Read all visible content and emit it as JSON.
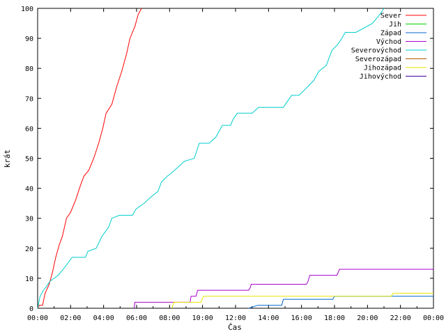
{
  "chart_data": {
    "type": "line",
    "title": "",
    "xlabel": "Čas",
    "ylabel": "krát",
    "xlim": [
      0,
      24
    ],
    "ylim": [
      0,
      100
    ],
    "x_ticks": [
      "00:00",
      "02:00",
      "04:00",
      "06:00",
      "08:00",
      "10:00",
      "12:00",
      "14:00",
      "16:00",
      "18:00",
      "20:00",
      "22:00",
      "00:00"
    ],
    "y_ticks": [
      0,
      10,
      20,
      30,
      40,
      50,
      60,
      70,
      80,
      90,
      100
    ],
    "grid": false,
    "legend_position": "top-right",
    "series": [
      {
        "name": "Sever",
        "color": "#ff0000",
        "points": [
          [
            0.0,
            0
          ],
          [
            0.1,
            1
          ],
          [
            0.3,
            1
          ],
          [
            0.45,
            5
          ],
          [
            0.7,
            8
          ],
          [
            0.9,
            12
          ],
          [
            1.1,
            17
          ],
          [
            1.3,
            21
          ],
          [
            1.5,
            24
          ],
          [
            1.75,
            30
          ],
          [
            2.0,
            32
          ],
          [
            2.3,
            36
          ],
          [
            2.6,
            41
          ],
          [
            2.8,
            44
          ],
          [
            3.1,
            46
          ],
          [
            3.4,
            50
          ],
          [
            3.7,
            55
          ],
          [
            3.95,
            60
          ],
          [
            4.15,
            65
          ],
          [
            4.5,
            68
          ],
          [
            4.8,
            74
          ],
          [
            5.1,
            79
          ],
          [
            5.4,
            85
          ],
          [
            5.6,
            90
          ],
          [
            5.9,
            94
          ],
          [
            6.1,
            98
          ],
          [
            6.3,
            100
          ]
        ]
      },
      {
        "name": "Jih",
        "color": "#00cc00",
        "points": []
      },
      {
        "name": "Západ",
        "color": "#0066cc",
        "points": [
          [
            12.8,
            0
          ],
          [
            13.35,
            1
          ],
          [
            14.8,
            1
          ],
          [
            14.9,
            3
          ],
          [
            17.9,
            3
          ],
          [
            18.0,
            4
          ],
          [
            24.0,
            4
          ]
        ]
      },
      {
        "name": "Východ",
        "color": "#aa00cc",
        "points": [
          [
            5.85,
            0
          ],
          [
            5.9,
            2
          ],
          [
            9.25,
            2
          ],
          [
            9.3,
            4
          ],
          [
            9.6,
            4
          ],
          [
            9.7,
            6
          ],
          [
            12.8,
            6
          ],
          [
            12.9,
            7
          ],
          [
            12.95,
            8
          ],
          [
            16.3,
            8
          ],
          [
            16.4,
            9
          ],
          [
            16.5,
            11
          ],
          [
            18.15,
            11
          ],
          [
            18.3,
            13
          ],
          [
            24.0,
            13
          ]
        ]
      },
      {
        "name": "Severovýchod",
        "color": "#00cccc",
        "points": [
          [
            0.0,
            0
          ],
          [
            0.15,
            4
          ],
          [
            0.35,
            6
          ],
          [
            0.5,
            7
          ],
          [
            0.75,
            9
          ],
          [
            1.25,
            11
          ],
          [
            1.55,
            13
          ],
          [
            2.1,
            17
          ],
          [
            2.9,
            17
          ],
          [
            3.05,
            19
          ],
          [
            3.55,
            20
          ],
          [
            3.9,
            24
          ],
          [
            4.3,
            27
          ],
          [
            4.5,
            30
          ],
          [
            4.95,
            31
          ],
          [
            5.75,
            31
          ],
          [
            5.95,
            33
          ],
          [
            6.45,
            35
          ],
          [
            6.85,
            37
          ],
          [
            7.3,
            39
          ],
          [
            7.5,
            42
          ],
          [
            7.85,
            44
          ],
          [
            8.1,
            45
          ],
          [
            8.5,
            47
          ],
          [
            8.9,
            49
          ],
          [
            9.5,
            50
          ],
          [
            9.8,
            55
          ],
          [
            10.4,
            55
          ],
          [
            10.8,
            57
          ],
          [
            11.2,
            61
          ],
          [
            11.7,
            61
          ],
          [
            11.85,
            63
          ],
          [
            12.1,
            65
          ],
          [
            13.0,
            65
          ],
          [
            13.4,
            67
          ],
          [
            14.9,
            67
          ],
          [
            15.4,
            71
          ],
          [
            15.85,
            71
          ],
          [
            16.4,
            74
          ],
          [
            16.75,
            76
          ],
          [
            17.05,
            79
          ],
          [
            17.5,
            81
          ],
          [
            17.85,
            86
          ],
          [
            18.2,
            88
          ],
          [
            18.45,
            90
          ],
          [
            18.65,
            92
          ],
          [
            19.3,
            92
          ],
          [
            20.3,
            95
          ],
          [
            20.75,
            98
          ],
          [
            21.0,
            100
          ]
        ]
      },
      {
        "name": "Severozápad",
        "color": "#b05a00",
        "points": []
      },
      {
        "name": "Jihozápad",
        "color": "#e6e600",
        "points": [
          [
            8.15,
            0
          ],
          [
            8.25,
            2
          ],
          [
            9.9,
            2
          ],
          [
            10.05,
            4
          ],
          [
            21.45,
            4
          ],
          [
            21.55,
            5
          ],
          [
            24.0,
            5
          ]
        ]
      },
      {
        "name": "Jihovýchod",
        "color": "#3a00a0",
        "points": []
      }
    ]
  }
}
